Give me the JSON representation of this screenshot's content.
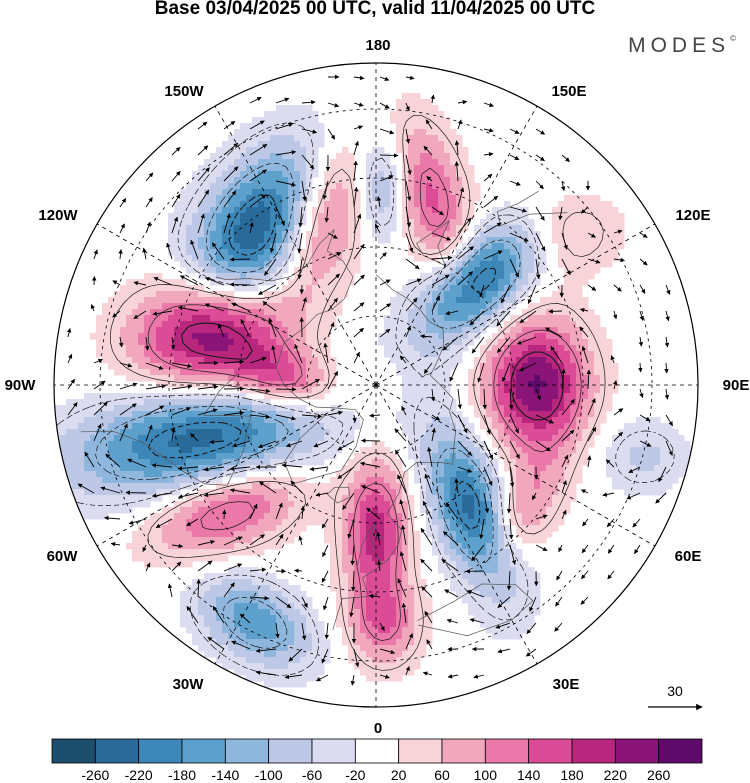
{
  "title": "Base 03/04/2025 00 UTC, valid 11/04/2025 00 UTC",
  "brand": "MODES",
  "brand_mark": "©",
  "longitude_labels": {
    "lon_180": "180",
    "lon_150e": "150E",
    "lon_120e": "120E",
    "lon_90e": "90E",
    "lon_60e": "60E",
    "lon_30e": "30E",
    "lon_0": "0",
    "lon_30w": "30W",
    "lon_60w": "60W",
    "lon_90w": "90W",
    "lon_120w": "120W",
    "lon_150w": "150W"
  },
  "vector_reference": {
    "value": "30"
  },
  "colorbar": {
    "ticks": [
      "-260",
      "-220",
      "-180",
      "-140",
      "-100",
      "-60",
      "-20",
      "20",
      "60",
      "100",
      "140",
      "180",
      "220",
      "260"
    ],
    "colors": [
      "#1d4e6e",
      "#2a6a98",
      "#3c86b8",
      "#5da0cc",
      "#8fb6dc",
      "#bcc8e6",
      "#dcdcf0",
      "#ffffff",
      "#f8d4d8",
      "#f2a8bc",
      "#ea78a8",
      "#dc4c96",
      "#b8267e",
      "#8a1478",
      "#5e0a6a"
    ]
  },
  "fields": {
    "positive_centers": [
      {
        "lon": -108,
        "lat": 52,
        "amp": 275,
        "sx": 52,
        "sy": 38,
        "rot": -10
      },
      {
        "lon": -162,
        "lat": 52,
        "amp": 175,
        "sx": 28,
        "sy": 55,
        "rot": 20
      },
      {
        "lon": 163,
        "lat": 48,
        "amp": 150,
        "sx": 24,
        "sy": 55,
        "rot": -15
      },
      {
        "lon": 90,
        "lat": 55,
        "amp": 265,
        "sx": 35,
        "sy": 45,
        "rot": 0
      },
      {
        "lon": 0,
        "lat": 58,
        "amp": 200,
        "sx": 22,
        "sy": 50,
        "rot": 0
      },
      {
        "lon": -50,
        "lat": 48,
        "amp": 160,
        "sx": 55,
        "sy": 28,
        "rot": -20
      },
      {
        "lon": -93,
        "lat": 70,
        "amp": 175,
        "sx": 38,
        "sy": 22,
        "rot": 15
      },
      {
        "lon": 48,
        "lat": 48,
        "amp": 110,
        "sx": 22,
        "sy": 45,
        "rot": 30
      },
      {
        "lon": 2,
        "lat": 38,
        "amp": 120,
        "sx": 25,
        "sy": 30,
        "rot": 0
      },
      {
        "lon": 130,
        "lat": 38,
        "amp": 80,
        "sx": 40,
        "sy": 30,
        "rot": 0
      }
    ],
    "negative_centers": [
      {
        "lon": -143,
        "lat": 48,
        "amp": 270,
        "sx": 38,
        "sy": 65,
        "rot": 35
      },
      {
        "lon": 135,
        "lat": 58,
        "amp": 240,
        "sx": 28,
        "sy": 55,
        "rot": 45
      },
      {
        "lon": 37,
        "lat": 55,
        "amp": 240,
        "sx": 25,
        "sy": 60,
        "rot": -20
      },
      {
        "lon": -73,
        "lat": 50,
        "amp": 240,
        "sx": 90,
        "sy": 35,
        "rot": -10
      },
      {
        "lon": -27,
        "lat": 32,
        "amp": 170,
        "sx": 42,
        "sy": 26,
        "rot": 30
      },
      {
        "lon": 178,
        "lat": 47,
        "amp": 120,
        "sx": 18,
        "sy": 35,
        "rot": 0
      },
      {
        "lon": 75,
        "lat": 30,
        "amp": 70,
        "sx": 30,
        "sy": 25,
        "rot": 0
      }
    ]
  }
}
